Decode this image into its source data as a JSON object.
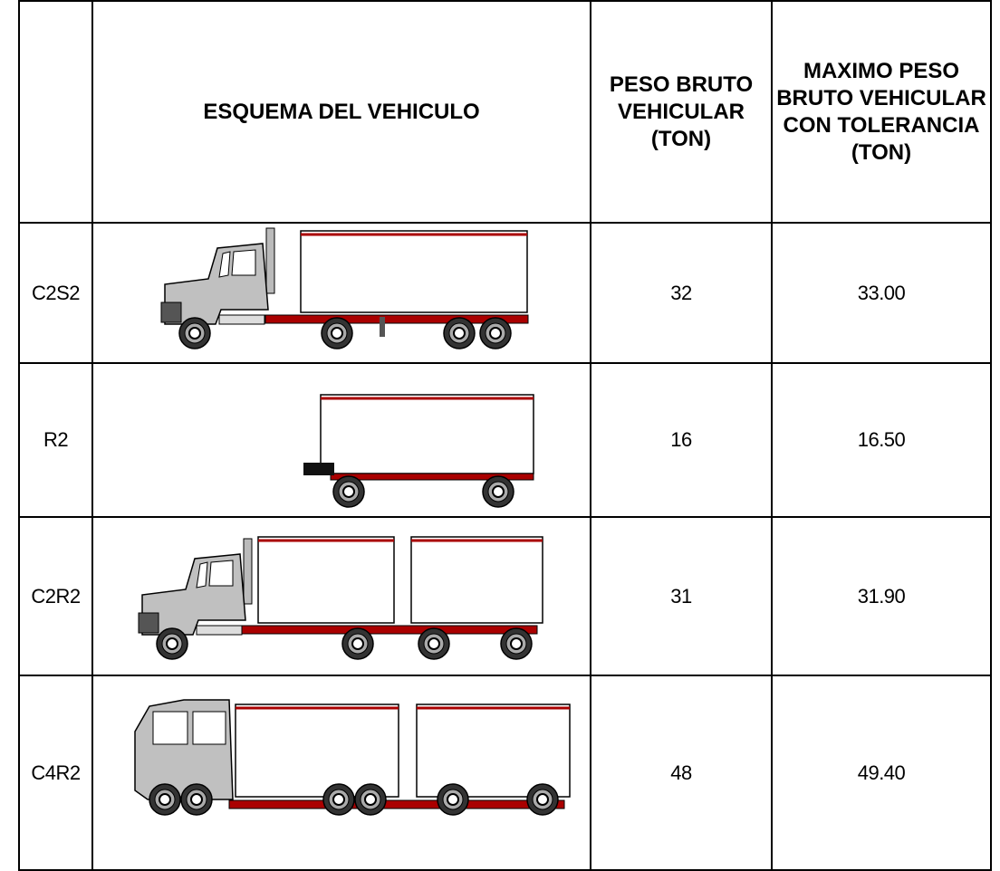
{
  "header": {
    "esquema": "ESQUEMA DEL VEHICULO",
    "peso": "PESO BRUTO VEHICULAR (TON)",
    "maximo": "MAXIMO PESO BRUTO VEHICULAR CON TOLERANCIA (TON)"
  },
  "rows": [
    {
      "code": "C2S2",
      "peso": "32",
      "maximo": "33.00"
    },
    {
      "code": "R2",
      "peso": "16",
      "maximo": "16.50"
    },
    {
      "code": "C2R2",
      "peso": "31",
      "maximo": "31.90"
    },
    {
      "code": "C4R2",
      "peso": "48",
      "maximo": "49.40"
    }
  ]
}
